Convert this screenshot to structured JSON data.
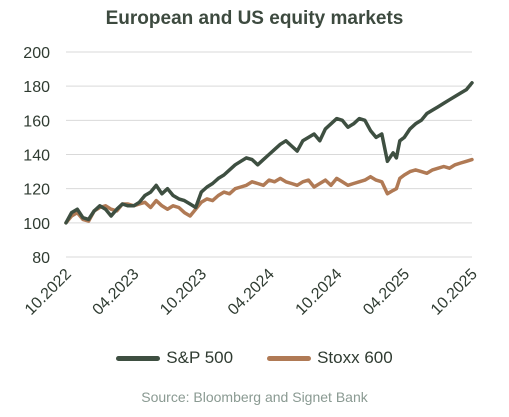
{
  "chart_data": {
    "type": "line",
    "title": "European and US equity markets",
    "source": "Source: Bloomberg and Signet Bank",
    "ylim": [
      80,
      200
    ],
    "yticks": [
      80,
      100,
      120,
      140,
      160,
      180,
      200
    ],
    "xlim": [
      0,
      36
    ],
    "xticks": [
      {
        "label": "10.2022",
        "x": 0
      },
      {
        "label": "04.2023",
        "x": 6
      },
      {
        "label": "10.2023",
        "x": 12
      },
      {
        "label": "04.2024",
        "x": 18
      },
      {
        "label": "10.2024",
        "x": 24
      },
      {
        "label": "04.2025",
        "x": 30
      },
      {
        "label": "10.2025",
        "x": 36
      }
    ],
    "grid": true,
    "legend_position": "bottom",
    "series": [
      {
        "name": "S&P 500",
        "color": "#3e4f41",
        "x": [
          0,
          0.5,
          1,
          1.5,
          2,
          2.5,
          3,
          3.5,
          4,
          4.5,
          5,
          5.5,
          6,
          6.5,
          7,
          7.5,
          8,
          8.5,
          9,
          9.5,
          10,
          10.5,
          11,
          11.5,
          12,
          12.5,
          13,
          13.5,
          14,
          14.5,
          15,
          15.5,
          16,
          16.5,
          17,
          17.5,
          18,
          18.5,
          19,
          19.5,
          20,
          20.5,
          21,
          21.5,
          22,
          22.5,
          23,
          23.5,
          24,
          24.5,
          25,
          25.5,
          26,
          26.5,
          27,
          27.5,
          28,
          28.5,
          29,
          29.3,
          29.6,
          30,
          30.5,
          31,
          31.5,
          32,
          32.5,
          33,
          33.5,
          34,
          34.5,
          35,
          35.5,
          36
        ],
        "y": [
          100,
          106,
          108,
          103,
          102,
          107,
          110,
          108,
          104,
          108,
          111,
          110,
          110,
          112,
          116,
          118,
          122,
          117,
          120,
          116,
          114,
          113,
          111,
          109,
          118,
          121,
          123,
          126,
          128,
          131,
          134,
          136,
          138,
          137,
          134,
          137,
          140,
          143,
          146,
          148,
          145,
          142,
          148,
          150,
          152,
          148,
          155,
          158,
          161,
          160,
          156,
          158,
          161,
          160,
          154,
          150,
          152,
          136,
          141,
          138,
          148,
          150,
          155,
          158,
          160,
          164,
          166,
          168,
          170,
          172,
          174,
          176,
          178,
          182
        ]
      },
      {
        "name": "Stoxx 600",
        "color": "#b07a55",
        "x": [
          0,
          0.5,
          1,
          1.5,
          2,
          2.5,
          3,
          3.5,
          4,
          4.5,
          5,
          5.5,
          6,
          6.5,
          7,
          7.5,
          8,
          8.5,
          9,
          9.5,
          10,
          10.5,
          11,
          11.5,
          12,
          12.5,
          13,
          13.5,
          14,
          14.5,
          15,
          15.5,
          16,
          16.5,
          17,
          17.5,
          18,
          18.5,
          19,
          19.5,
          20,
          20.5,
          21,
          21.5,
          22,
          22.5,
          23,
          23.5,
          24,
          24.5,
          25,
          25.5,
          26,
          26.5,
          27,
          27.5,
          28,
          28.5,
          29,
          29.3,
          29.6,
          30,
          30.5,
          31,
          31.5,
          32,
          32.5,
          33,
          33.5,
          34,
          34.5,
          35,
          35.5,
          36
        ],
        "y": [
          100,
          104,
          106,
          102,
          101,
          107,
          109,
          110,
          108,
          107,
          111,
          111,
          110,
          111,
          112,
          109,
          113,
          110,
          108,
          110,
          109,
          106,
          104,
          108,
          112,
          114,
          113,
          116,
          118,
          117,
          120,
          121,
          122,
          124,
          123,
          122,
          125,
          124,
          126,
          124,
          123,
          122,
          124,
          125,
          121,
          123,
          125,
          122,
          126,
          124,
          122,
          123,
          124,
          125,
          127,
          125,
          124,
          117,
          119,
          120,
          126,
          128,
          130,
          131,
          130,
          129,
          131,
          132,
          133,
          132,
          134,
          135,
          136,
          137
        ]
      }
    ]
  }
}
